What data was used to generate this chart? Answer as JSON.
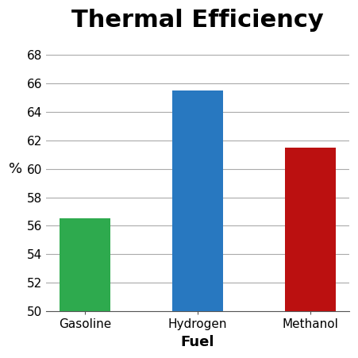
{
  "categories": [
    "Gasoline",
    "Hydrogen",
    "Methanol"
  ],
  "values": [
    56.5,
    65.5,
    61.5
  ],
  "bar_colors": [
    "#2eaa4e",
    "#2878c0",
    "#bb1010"
  ],
  "title": "Thermal Efficiency",
  "xlabel": "Fuel",
  "ylabel": "%",
  "ylim": [
    50,
    69
  ],
  "yticks": [
    50,
    52,
    54,
    56,
    58,
    60,
    62,
    64,
    66,
    68
  ],
  "background_color": "#ffffff",
  "title_fontsize": 22,
  "axis_fontsize": 13,
  "tick_fontsize": 11
}
